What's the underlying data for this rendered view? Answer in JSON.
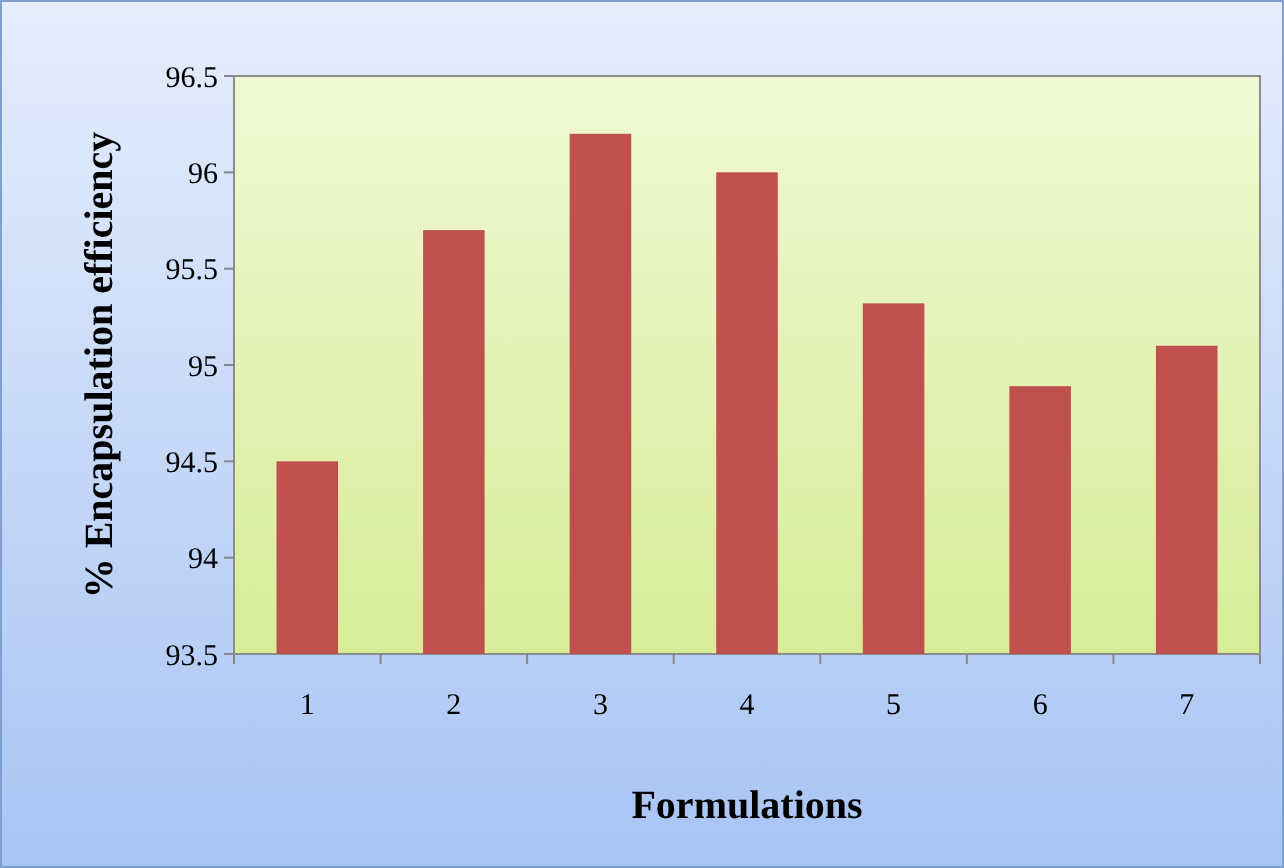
{
  "chart_data": {
    "type": "bar",
    "xlabel": "Formulations",
    "ylabel": "% Encapsulation efficiency",
    "categories": [
      "1",
      "2",
      "3",
      "4",
      "5",
      "6",
      "7"
    ],
    "values": [
      94.5,
      95.7,
      96.2,
      96.0,
      95.32,
      94.89,
      95.1
    ],
    "color": "#c0504d",
    "ylim": [
      93.5,
      96.5
    ],
    "yticks": [
      93.5,
      94,
      94.5,
      95,
      95.5,
      96,
      96.5
    ]
  }
}
